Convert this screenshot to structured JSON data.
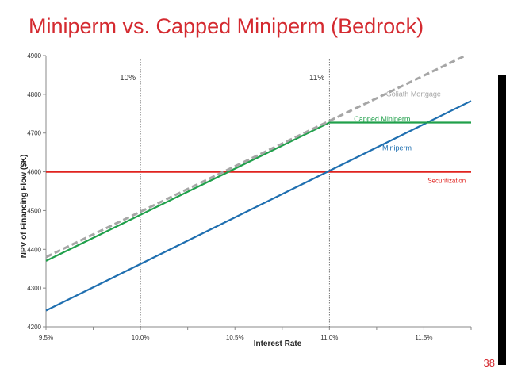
{
  "slide": {
    "title": "Miniperm vs. Capped Miniperm (Bedrock)",
    "page_number": "38"
  },
  "colors": {
    "title": "#d42a30",
    "miniperm": "#1f6fb0",
    "capped_miniperm": "#20a04b",
    "goliath": "#a6a6a6",
    "securitization": "#e0231f",
    "axis": "#888888",
    "reference_line": "#555555"
  },
  "chart_data": {
    "type": "line",
    "title": "",
    "xlabel": "Interest Rate",
    "ylabel": "NPV of Financing Flow ($K)",
    "xlim": [
      9.5,
      11.75
    ],
    "ylim": [
      4200,
      4900
    ],
    "xticks": [
      9.5,
      10.0,
      10.5,
      11.0,
      11.5
    ],
    "xtick_labels": [
      "9.5%",
      "10.0%",
      "10.5%",
      "11.0%",
      "11.5%"
    ],
    "yticks": [
      4200,
      4300,
      4400,
      4500,
      4600,
      4700,
      4800,
      4900
    ],
    "ytick_labels": [
      "4200",
      "4300",
      "4400",
      "4500",
      "4600",
      "4700",
      "4800",
      "4900"
    ],
    "grid": false,
    "series": [
      {
        "name": "Goliath Mortgage",
        "style": "dashed",
        "color": "#a6a6a6",
        "x": [
          9.5,
          11.72
        ],
        "y": [
          4380,
          4900
        ]
      },
      {
        "name": "Capped Miniperm",
        "style": "solid",
        "color": "#20a04b",
        "x": [
          9.5,
          11.0,
          11.75
        ],
        "y": [
          4370,
          4727,
          4727
        ]
      },
      {
        "name": "Miniperm",
        "style": "solid",
        "color": "#1f6fb0",
        "x": [
          9.5,
          11.75
        ],
        "y": [
          4242,
          4783
        ]
      },
      {
        "name": "Securitization",
        "style": "solid",
        "color": "#e0231f",
        "x": [
          9.5,
          11.75
        ],
        "y": [
          4600,
          4600
        ]
      }
    ],
    "reference_lines": [
      {
        "x": 10.0,
        "label": "10%"
      },
      {
        "x": 11.0,
        "label": "11%"
      }
    ],
    "annotations": [
      {
        "text": "Goliath Mortgage",
        "x": 11.3,
        "y": 4795
      },
      {
        "text": "Capped Miniperm",
        "x": 11.13,
        "y": 4730
      },
      {
        "text": "Miniperm",
        "x": 11.28,
        "y": 4655
      },
      {
        "text": "Securitization",
        "x": 11.52,
        "y": 4572
      }
    ]
  }
}
